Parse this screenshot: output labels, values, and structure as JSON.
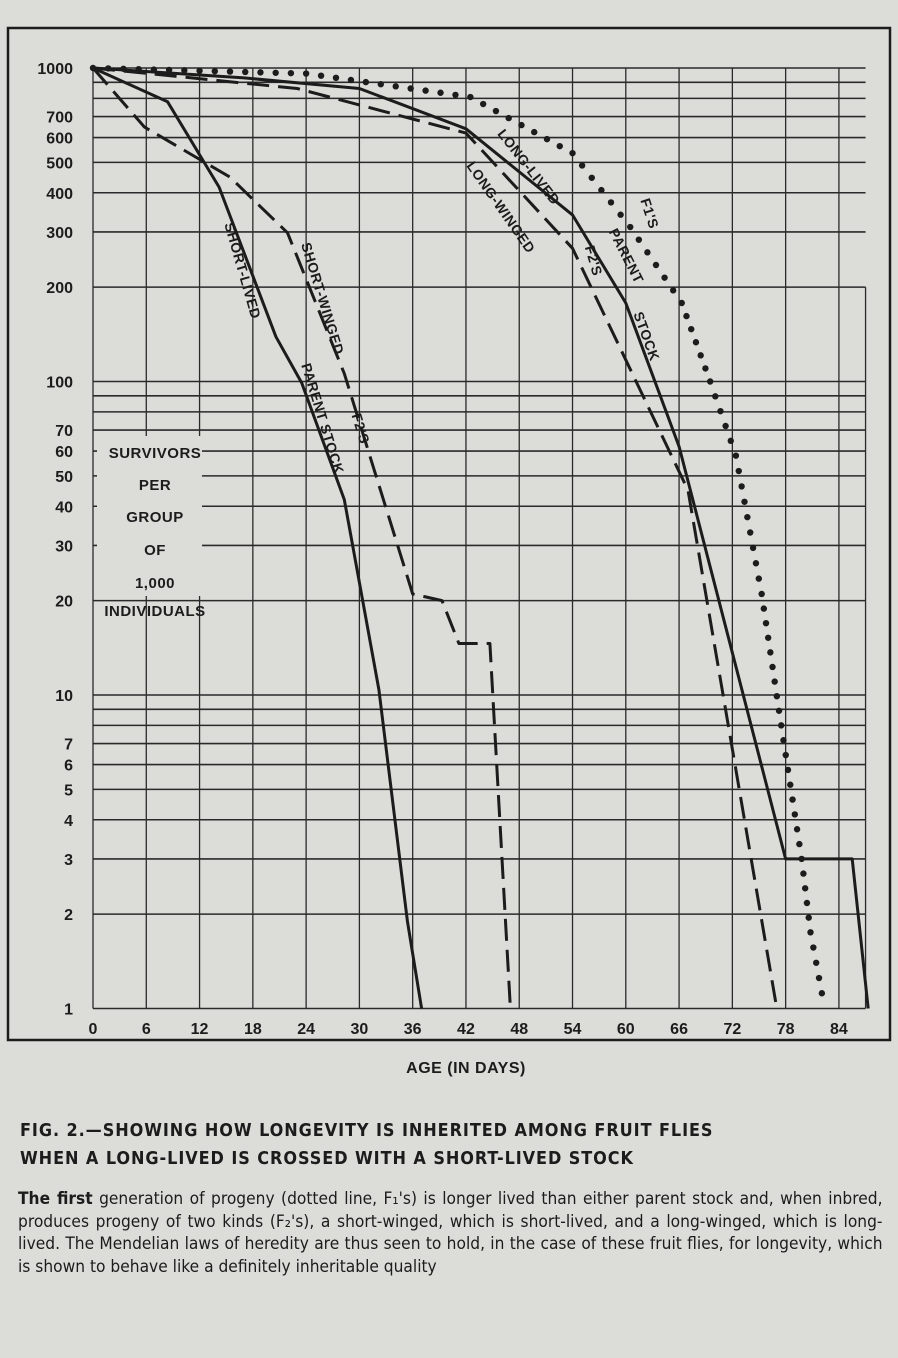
{
  "chart_data": {
    "type": "line",
    "yscale": "log",
    "ylim": [
      1,
      1000
    ],
    "xlim": [
      0,
      87
    ],
    "xlabel": "Age (in days)",
    "ylabel": "Survivors per group of 1,000 individuals",
    "ylabel_lines": [
      "Survivors",
      "per",
      "Group",
      "of",
      "1,000",
      "Individuals"
    ],
    "x_ticks": [
      0,
      6,
      12,
      18,
      24,
      30,
      36,
      42,
      48,
      54,
      60,
      66,
      72,
      78,
      84
    ],
    "y_ticks": [
      1000,
      700,
      600,
      500,
      400,
      300,
      200,
      100,
      70,
      60,
      50,
      40,
      30,
      20,
      10,
      7,
      6,
      5,
      4,
      3,
      2,
      1
    ],
    "y_gridlines": [
      1000,
      900,
      800,
      700,
      600,
      500,
      400,
      300,
      200,
      100,
      90,
      80,
      70,
      60,
      50,
      40,
      30,
      20,
      10,
      9,
      8,
      7,
      6,
      5,
      4,
      3,
      2,
      1
    ],
    "grid": true,
    "series": [
      {
        "name": "Long-lived parent stock",
        "style": "solid",
        "labels": [
          "Long-Lived",
          "Parent",
          "Stock"
        ],
        "x": [
          0,
          17,
          30,
          42,
          54,
          60,
          66,
          78,
          85.5,
          87.3
        ],
        "y": [
          1000,
          930,
          860,
          640,
          340,
          178,
          62,
          3,
          3,
          1
        ]
      },
      {
        "name": "Long-winged F2's",
        "style": "dashed",
        "labels": [
          "Long-Winged",
          "F2's"
        ],
        "x": [
          0,
          23,
          42,
          54,
          67,
          77
        ],
        "y": [
          1000,
          860,
          620,
          266,
          45,
          1
        ]
      },
      {
        "name": "F1's",
        "style": "dotted",
        "labels": [
          "F1's"
        ],
        "x": [
          0,
          24,
          42.5,
          54,
          60.5,
          66.3,
          69.5,
          72.4,
          75.3,
          77.5,
          79.8,
          80.8,
          82.4
        ],
        "y": [
          1000,
          960,
          808,
          535,
          311,
          178,
          100,
          58,
          21,
          8,
          3,
          1.75,
          1
        ]
      },
      {
        "name": "Short-lived parent stock",
        "style": "solid",
        "labels": [
          "Short-Lived",
          "Parent Stock"
        ],
        "x": [
          0,
          8.4,
          14.2,
          20.6,
          23.5,
          28.3,
          32.2,
          35.4,
          37
        ],
        "y": [
          1000,
          780,
          417,
          139,
          99,
          42,
          10.4,
          1.9,
          1
        ]
      },
      {
        "name": "Short-winged F2's",
        "style": "dashed",
        "labels": [
          "Short-Winged",
          "F2's"
        ],
        "x": [
          0,
          5.8,
          15.4,
          21.9,
          28.3,
          36,
          39.3,
          41.2,
          44.7,
          47
        ],
        "y": [
          1000,
          648,
          449,
          298,
          106,
          21,
          20,
          14.6,
          14.6,
          1
        ]
      }
    ]
  },
  "caption": {
    "title_line1": "Fig. 2.—Showing how longevity is inherited among fruit flies",
    "title_line2": "when a long-lived is crossed with a short-lived stock",
    "body_first": "The first",
    "body_rest": " generation of progeny (dotted line, F₁'s) is longer lived than either parent stock and, when inbred, produces progeny of two kinds (F₂'s), a short-winged, which is short-lived, and a long-winged, which is long-lived. The Mendelian laws of heredity are thus seen to hold, in the case of these fruit flies, for longevity, which is shown to behave like a definitely inheritable quality"
  }
}
